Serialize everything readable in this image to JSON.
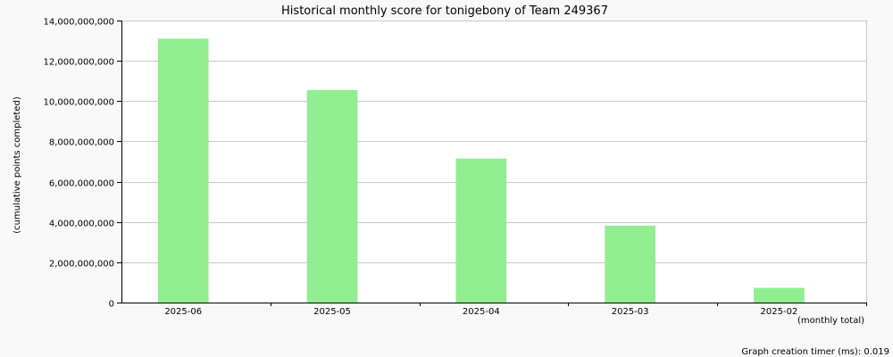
{
  "chart_data": {
    "type": "bar",
    "title": "Historical monthly score for tonigebony of Team 249367",
    "ylabel": "(cumulative points completed)",
    "xlabel": "(monthly total)",
    "categories": [
      "2025-06",
      "2025-05",
      "2025-04",
      "2025-03",
      "2025-02"
    ],
    "values": [
      13100000000,
      10550000000,
      7150000000,
      3820000000,
      730000000
    ],
    "ylim": [
      0,
      14000000000
    ],
    "yticks": [
      0,
      2000000000,
      4000000000,
      6000000000,
      8000000000,
      10000000000,
      12000000000,
      14000000000
    ],
    "ytick_labels": [
      "0",
      "2,000,000,000",
      "4,000,000,000",
      "6,000,000,000",
      "8,000,000,000",
      "10,000,000,000",
      "12,000,000,000",
      "14,000,000,000"
    ],
    "grid": true,
    "bar_color": "#90ee90"
  },
  "footer": {
    "timer_text": "Graph creation timer (ms): 0.019"
  }
}
